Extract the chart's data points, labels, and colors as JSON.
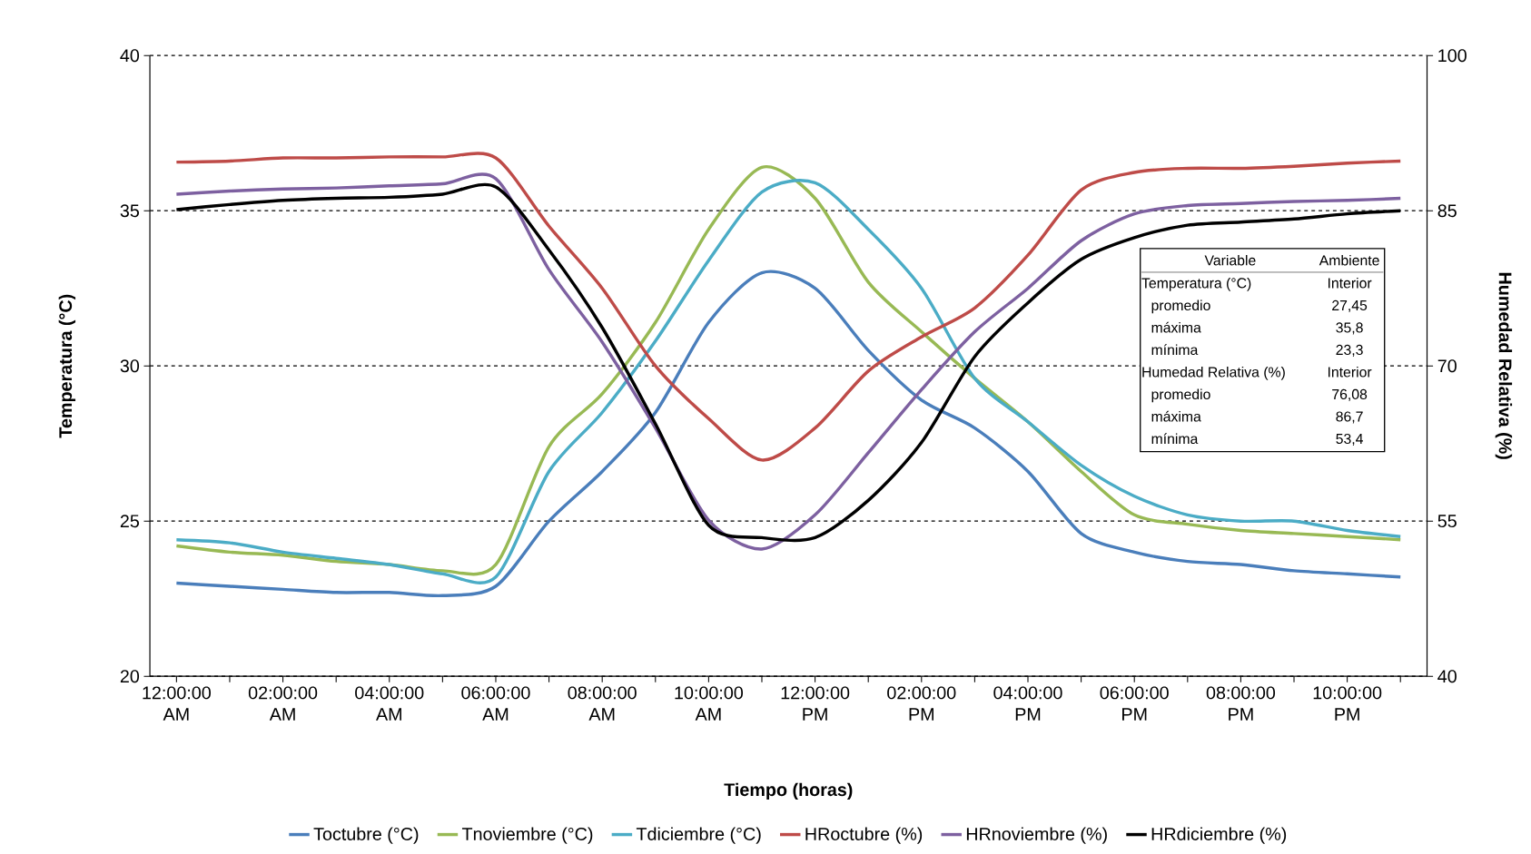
{
  "chart_data": {
    "type": "line",
    "xlabel": "Tiempo (horas)",
    "ylabel": "Temperatura (°C)",
    "y2label": "Humedad Relativa (%)",
    "categories": [
      "12:00:00 AM",
      null,
      "02:00:00 AM",
      null,
      "04:00:00 AM",
      null,
      "06:00:00 AM",
      null,
      "08:00:00 AM",
      null,
      "10:00:00 AM",
      null,
      "12:00:00 PM",
      null,
      "02:00:00 PM",
      null,
      "04:00:00 PM",
      null,
      "06:00:00 PM",
      null,
      "08:00:00 PM",
      null,
      "10:00:00 PM",
      null
    ],
    "series": [
      {
        "name": "Toctubre (°C)",
        "color": "#4a7ebb",
        "values": [
          23.0,
          22.9,
          22.8,
          22.7,
          22.7,
          22.6,
          22.9,
          25.0,
          26.6,
          28.5,
          31.4,
          33.0,
          32.5,
          30.5,
          28.9,
          28.0,
          26.6,
          24.6,
          24.0,
          23.7,
          23.6,
          23.4,
          23.3,
          23.2
        ]
      },
      {
        "name": "Tnoviembre (°C)",
        "color": "#98b954",
        "values": [
          24.2,
          24.0,
          23.9,
          23.7,
          23.6,
          23.4,
          23.6,
          27.4,
          29.1,
          31.4,
          34.4,
          36.4,
          35.4,
          32.7,
          31.1,
          29.6,
          28.2,
          26.6,
          25.2,
          24.9,
          24.7,
          24.6,
          24.5,
          24.4
        ]
      },
      {
        "name": "Tdiciembre (°C)",
        "color": "#4bacc6",
        "values": [
          24.4,
          24.3,
          24.0,
          23.8,
          23.6,
          23.3,
          23.2,
          26.6,
          28.5,
          30.8,
          33.4,
          35.6,
          35.9,
          34.4,
          32.5,
          29.6,
          28.2,
          26.8,
          25.8,
          25.2,
          25.0,
          25.0,
          24.7,
          24.5
        ]
      },
      {
        "name": "HRoctubre (%)",
        "color": "#be4b48",
        "axis": "y2",
        "values": [
          89.7,
          89.8,
          90.1,
          90.1,
          90.2,
          90.2,
          90.1,
          83.5,
          77.5,
          70.0,
          64.9,
          60.9,
          64.0,
          69.5,
          72.8,
          75.6,
          80.7,
          87.0,
          88.7,
          89.1,
          89.1,
          89.3,
          89.6,
          89.8
        ]
      },
      {
        "name": "HRnoviembre (%)",
        "color": "#7d60a0",
        "axis": "y2",
        "values": [
          86.6,
          86.9,
          87.1,
          87.2,
          87.4,
          87.6,
          88.1,
          79.3,
          72.3,
          64.0,
          55.1,
          52.3,
          55.6,
          61.6,
          67.7,
          73.3,
          77.5,
          82.1,
          84.7,
          85.5,
          85.7,
          85.9,
          86.0,
          86.2
        ]
      },
      {
        "name": "HRdiciembre (%)",
        "color": "#000000",
        "axis": "y2",
        "values": [
          85.1,
          85.6,
          86.0,
          86.2,
          86.3,
          86.6,
          87.3,
          81.2,
          73.7,
          64.4,
          54.6,
          53.4,
          53.4,
          57.0,
          62.6,
          70.9,
          76.1,
          80.3,
          82.4,
          83.6,
          83.9,
          84.2,
          84.7,
          85.0
        ]
      }
    ],
    "ylim": [
      20,
      40
    ],
    "yticks": [
      20,
      25,
      30,
      35,
      40
    ],
    "y2lim": [
      40,
      100
    ],
    "y2ticks": [
      40,
      55,
      70,
      85,
      100
    ],
    "grid": "y",
    "legend": "bottom",
    "annotations": [
      "Variable",
      "Ambiente",
      "Temperatura (°C)",
      "Interior",
      "promedio",
      "27,45",
      "máxima",
      "35,8",
      "mínima",
      "23,3",
      "Humedad Relativa (%)",
      "Interior",
      "promedio",
      "76,08",
      "máxima",
      "86,7",
      "mínima",
      "53,4"
    ]
  }
}
